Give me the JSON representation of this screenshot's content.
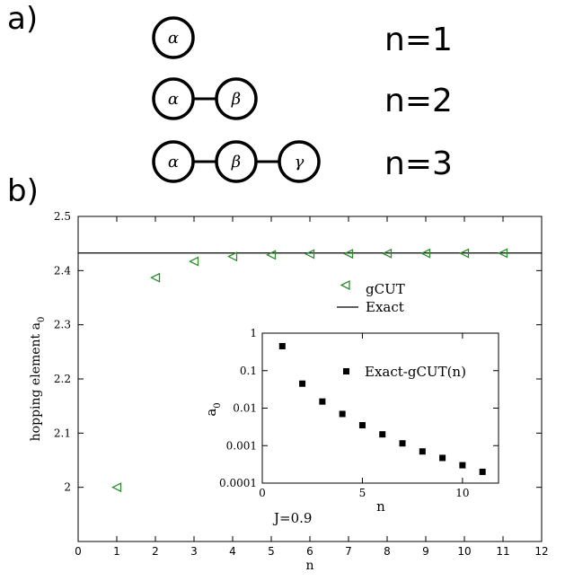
{
  "panel_a": {
    "label": "a)",
    "chains": [
      {
        "nodes": [
          "α"
        ],
        "label": "n=1"
      },
      {
        "nodes": [
          "α",
          "β"
        ],
        "label": "n=2"
      },
      {
        "nodes": [
          "α",
          "β",
          "γ"
        ],
        "label": "n=3"
      }
    ]
  },
  "panel_b": {
    "label": "b)"
  },
  "chart_data": [
    {
      "type": "scatter",
      "title": "",
      "xlabel": "n",
      "ylabel": "hopping element a",
      "ylabel_subscript": "0",
      "xlim": [
        0,
        12
      ],
      "ylim": [
        1.9,
        2.5
      ],
      "xticks": [
        0,
        1,
        2,
        3,
        4,
        5,
        6,
        7,
        8,
        9,
        10,
        11,
        12
      ],
      "yticks": [
        2,
        2.1,
        2.2,
        2.3,
        2.4,
        2.5
      ],
      "grid": false,
      "legend_position": "upper-right",
      "annotation": "J=0.9",
      "series": [
        {
          "name": "gCUT",
          "marker": "triangle-left-open",
          "color": "#2e8b2e",
          "x": [
            1,
            2,
            3,
            4,
            5,
            6,
            7,
            8,
            9,
            10,
            11
          ],
          "y": [
            2.0,
            2.387,
            2.417,
            2.426,
            2.429,
            2.4305,
            2.431,
            2.4315,
            2.4318,
            2.432,
            2.4322
          ]
        },
        {
          "name": "Exact",
          "style": "line",
          "color": "#000000",
          "y_constant": 2.4325
        }
      ]
    },
    {
      "type": "scatter",
      "title": "",
      "xlabel": "n",
      "ylabel": "a",
      "ylabel_subscript": "0",
      "xlim": [
        0,
        11.8
      ],
      "ylim": [
        0.0001,
        1
      ],
      "yscale": "log",
      "xticks": [
        0,
        5,
        10
      ],
      "yticks": [
        1,
        0.1,
        0.01,
        0.001,
        0.0001
      ],
      "ytick_labels": [
        "1",
        "0.1",
        "0.01",
        "0.001",
        "0.0001"
      ],
      "grid": false,
      "legend_position": "upper-right",
      "series": [
        {
          "name": "Exact-gCUT(n)",
          "marker": "square-filled",
          "color": "#000000",
          "x": [
            1,
            2,
            3,
            4,
            5,
            6,
            7,
            8,
            9,
            10,
            11
          ],
          "y": [
            0.45,
            0.045,
            0.015,
            0.007,
            0.0035,
            0.002,
            0.00115,
            0.0007,
            0.00047,
            0.0003,
            0.0002
          ]
        }
      ]
    }
  ]
}
